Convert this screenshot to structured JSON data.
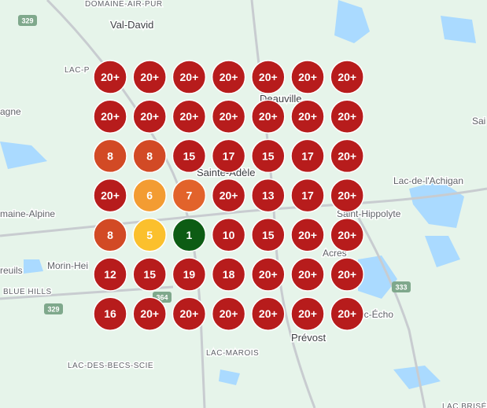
{
  "map_labels": [
    "DOMAINE-AIR-PUR",
    "Val-David",
    "LAC-P",
    "agne",
    "Deauville",
    "Sai",
    "Sainte-Adèle",
    "Lac-de-l'Achigan",
    "maine-Alpine",
    "Saint-Hippolyte",
    "Morin-Hei",
    "reuils",
    "Acres",
    "BLUE HILLS",
    "Prévost",
    "ac-Écho",
    "LAC-MAROIS",
    "LAC-DES-BECS-SCIE",
    "LAC BRISÉE"
  ],
  "road_shields": [
    "329",
    "329",
    "333",
    "364"
  ],
  "grid": [
    [
      "20+",
      "20+",
      "20+",
      "20+",
      "20+",
      "20+",
      "20+"
    ],
    [
      "20+",
      "20+",
      "20+",
      "20+",
      "20+",
      "20+",
      "20+"
    ],
    [
      "8",
      "8",
      "15",
      "17",
      "15",
      "17",
      "20+"
    ],
    [
      "20+",
      "6",
      "7",
      "20+",
      "13",
      "17",
      "20+"
    ],
    [
      "8",
      "5",
      "1",
      "10",
      "15",
      "20+",
      "20+"
    ],
    [
      "12",
      "15",
      "19",
      "18",
      "20+",
      "20+",
      "20+"
    ],
    [
      "16",
      "20+",
      "20+",
      "20+",
      "20+",
      "20+",
      "20+"
    ]
  ]
}
